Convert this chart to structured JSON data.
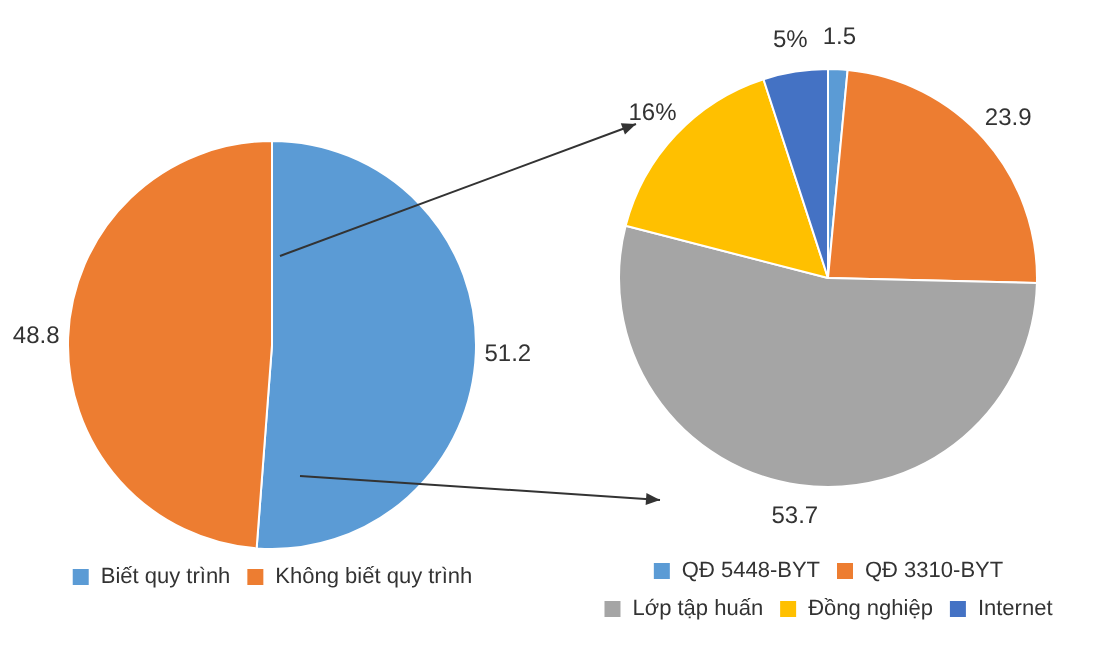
{
  "chart_data": [
    {
      "type": "pie",
      "categories": [
        "Biết quy trình",
        "Không biết quy trình"
      ],
      "values": [
        51.2,
        48.8
      ],
      "colors": [
        "#5b9bd5",
        "#ed7d31"
      ],
      "value_labels": [
        "51.2",
        "48.8"
      ],
      "legend": "bottom"
    },
    {
      "type": "pie",
      "categories": [
        "QĐ 5448-BYT",
        "QĐ 3310-BYT",
        "Lớp tập huấn",
        "Đồng nghiệp",
        "Internet"
      ],
      "values": [
        1.5,
        23.9,
        53.7,
        16,
        5
      ],
      "colors": [
        "#5b9bd5",
        "#ed7d31",
        "#a5a5a5",
        "#ffc000",
        "#4472c4"
      ],
      "value_labels": [
        "1.5",
        "23.9",
        "53.7",
        "16%",
        "5%"
      ],
      "legend": "bottom"
    }
  ]
}
